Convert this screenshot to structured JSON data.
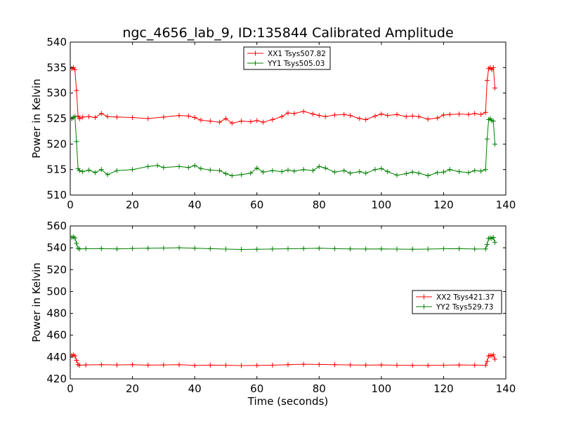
{
  "chart_data": [
    {
      "type": "line",
      "title": "ngc_4656_lab_9, ID:135844 Calibrated Amplitude",
      "xlabel": "",
      "ylabel": "Power in Kelvin",
      "xlim": [
        0,
        140
      ],
      "ylim": [
        510,
        540
      ],
      "xticks": [
        0,
        20,
        40,
        60,
        80,
        100,
        120,
        140
      ],
      "yticks": [
        510,
        515,
        520,
        525,
        530,
        535,
        540
      ],
      "x_tick_labels": [
        "0",
        "20",
        "40",
        "60",
        "80",
        "100",
        "120",
        "140"
      ],
      "y_tick_labels": [
        "510",
        "515",
        "520",
        "525",
        "530",
        "535",
        "540"
      ],
      "legend_position": "top-center",
      "marker": "plus",
      "series": [
        {
          "name": "XX1 Tsys507.82",
          "color": "#ff0000",
          "x": [
            0.5,
            1.0,
            1.5,
            2.0,
            2.5,
            3,
            4,
            6,
            8,
            10,
            12,
            15,
            20,
            25,
            30,
            35,
            38,
            40,
            42,
            45,
            48,
            50,
            52,
            55,
            58,
            60,
            62,
            65,
            68,
            70,
            72,
            75,
            78,
            80,
            82,
            85,
            88,
            90,
            93,
            95,
            98,
            100,
            102,
            105,
            108,
            110,
            112,
            115,
            118,
            120,
            122,
            125,
            128,
            130,
            132,
            133.5,
            134.0,
            134.5,
            135,
            135.5,
            136.0,
            136.5
          ],
          "y": [
            534.8,
            535.0,
            534.6,
            530.5,
            525.5,
            525.0,
            525.3,
            525.4,
            525.2,
            526.0,
            525.4,
            525.3,
            525.2,
            525.0,
            525.3,
            525.6,
            525.5,
            525.2,
            524.7,
            524.5,
            524.3,
            525.0,
            524.1,
            524.5,
            524.4,
            524.6,
            524.3,
            524.8,
            525.4,
            526.1,
            526.0,
            526.4,
            525.9,
            525.6,
            525.4,
            525.7,
            525.8,
            525.6,
            525.0,
            524.8,
            525.5,
            525.9,
            525.6,
            525.8,
            525.4,
            525.5,
            525.4,
            524.9,
            525.1,
            525.7,
            525.8,
            525.9,
            525.8,
            526.0,
            525.8,
            526.2,
            532.5,
            534.8,
            535.0,
            534.6,
            535.0,
            531.0
          ]
        },
        {
          "name": "YY1 Tsys505.03",
          "color": "#008000",
          "x": [
            0.5,
            1.0,
            1.5,
            2.0,
            2.5,
            3,
            4,
            6,
            8,
            10,
            12,
            15,
            20,
            25,
            28,
            30,
            35,
            38,
            40,
            42,
            45,
            48,
            50,
            52,
            55,
            58,
            60,
            62,
            65,
            68,
            70,
            72,
            75,
            78,
            80,
            82,
            85,
            88,
            90,
            93,
            95,
            98,
            100,
            102,
            105,
            108,
            110,
            112,
            115,
            118,
            120,
            122,
            125,
            128,
            130,
            132,
            133.5,
            134.0,
            134.5,
            135,
            135.5,
            136.0,
            136.5
          ],
          "y": [
            525.0,
            525.2,
            525.4,
            520.5,
            515.2,
            514.8,
            514.6,
            514.9,
            514.4,
            515.0,
            514.0,
            514.8,
            515.0,
            515.6,
            515.8,
            515.4,
            515.6,
            515.4,
            515.8,
            515.2,
            514.9,
            514.8,
            514.2,
            513.8,
            514.0,
            514.3,
            515.3,
            514.5,
            514.8,
            514.6,
            514.9,
            514.7,
            515.0,
            514.8,
            515.6,
            515.3,
            514.5,
            514.8,
            514.3,
            514.6,
            514.3,
            515.0,
            515.2,
            514.6,
            513.9,
            514.2,
            514.5,
            514.3,
            513.8,
            514.4,
            514.5,
            515.0,
            514.6,
            514.4,
            514.8,
            514.7,
            515.0,
            521.0,
            524.8,
            525.0,
            524.6,
            524.5,
            520.0
          ]
        }
      ]
    },
    {
      "type": "line",
      "title": "",
      "xlabel": "Time (seconds)",
      "ylabel": "Power in Kelvin",
      "xlim": [
        0,
        140
      ],
      "ylim": [
        420,
        560
      ],
      "xticks": [
        0,
        20,
        40,
        60,
        80,
        100,
        120,
        140
      ],
      "yticks": [
        420,
        440,
        460,
        480,
        500,
        520,
        540,
        560
      ],
      "x_tick_labels": [
        "0",
        "20",
        "40",
        "60",
        "80",
        "100",
        "120",
        "140"
      ],
      "y_tick_labels": [
        "420",
        "440",
        "460",
        "480",
        "500",
        "520",
        "540",
        "560"
      ],
      "legend_position": "center-right",
      "marker": "plus",
      "series": [
        {
          "name": "XX2 Tsys421.37",
          "color": "#ff0000",
          "x": [
            0.5,
            1.0,
            1.5,
            2.0,
            2.5,
            3,
            5,
            10,
            15,
            20,
            25,
            30,
            35,
            40,
            45,
            50,
            55,
            60,
            65,
            70,
            75,
            80,
            85,
            90,
            95,
            100,
            105,
            110,
            115,
            120,
            125,
            130,
            133.5,
            134.0,
            134.5,
            135,
            135.5,
            136.0,
            136.5
          ],
          "y": [
            441.5,
            442.0,
            441.0,
            437.0,
            433.0,
            432.5,
            432.8,
            433.0,
            432.8,
            433.0,
            432.6,
            432.8,
            433.0,
            432.3,
            432.6,
            432.5,
            432.2,
            432.4,
            432.5,
            433.0,
            433.4,
            433.2,
            433.0,
            432.8,
            432.6,
            432.8,
            432.5,
            432.4,
            432.3,
            432.5,
            432.8,
            432.6,
            432.5,
            436.0,
            441.0,
            441.5,
            441.2,
            442.0,
            438.0
          ]
        },
        {
          "name": "YY2 Tsys529.73",
          "color": "#008000",
          "x": [
            0.5,
            1.0,
            1.5,
            2.0,
            2.5,
            3,
            5,
            10,
            15,
            20,
            25,
            30,
            35,
            40,
            45,
            50,
            55,
            60,
            65,
            70,
            75,
            80,
            85,
            90,
            95,
            100,
            105,
            110,
            115,
            120,
            125,
            130,
            133.5,
            134.0,
            134.5,
            135,
            135.5,
            136.0,
            136.5
          ],
          "y": [
            549.5,
            550.0,
            549.0,
            544.0,
            539.5,
            539.0,
            539.2,
            539.3,
            539.0,
            539.4,
            539.6,
            539.8,
            540.0,
            539.6,
            539.2,
            538.8,
            538.5,
            538.7,
            538.9,
            539.1,
            539.3,
            539.6,
            539.2,
            539.0,
            538.9,
            539.0,
            538.8,
            538.7,
            538.8,
            539.1,
            539.2,
            538.9,
            539.0,
            543.0,
            548.5,
            549.0,
            548.5,
            549.5,
            545.0
          ]
        }
      ]
    }
  ]
}
